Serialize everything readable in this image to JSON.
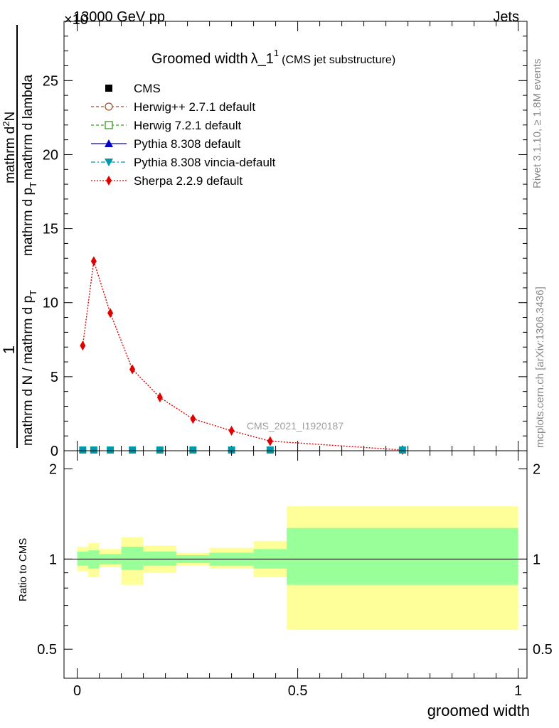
{
  "header": {
    "left": "13000 GeV pp",
    "right": "Jets",
    "exponent": "×10"
  },
  "side_labels": {
    "rivet": "Rivet 3.1.10, ≥ 1.8M events",
    "mcplots": "mcplots.cern.ch [arXiv:1306.3436]"
  },
  "chart_data": {
    "type": "line",
    "title_main": "Groomed width",
    "title_symbol": "λ_1",
    "title_sup": "1",
    "title_note": "(CMS jet substructure)",
    "ylabel_parts": {
      "numer_top": "1",
      "denom_top": "mathrm d N / mathrm d p",
      "denom_top_sub": "T",
      "numer_bot": "mathrm d",
      "numer_bot_sup": "2",
      "numer_bot_end": "N",
      "denom_bot": "mathrm d p",
      "denom_bot_sub": "T",
      "denom_bot_end": "mathrm d lambda"
    },
    "xlabel": "groomed width",
    "ratio_ylabel": "Ratio to CMS",
    "watermark": "CMS_2021_I1920187",
    "x_range": [
      -0.03,
      1.02
    ],
    "main_y_range": [
      0,
      29
    ],
    "main_y_ticks": [
      0,
      5,
      10,
      15,
      20,
      25
    ],
    "ratio_y_range": [
      0.4,
      2.3
    ],
    "ratio_y_ticks": [
      0.5,
      1,
      2
    ],
    "x_ticks": [
      0,
      0.5,
      1
    ],
    "legend": [
      {
        "label": "CMS",
        "color": "#000000",
        "marker": "square-filled",
        "line": "none"
      },
      {
        "label": "Herwig++ 2.7.1 default",
        "color": "#a0522d",
        "marker": "circle-open",
        "line": "dashed"
      },
      {
        "label": "Herwig 7.2.1 default",
        "color": "#3a9a1c",
        "marker": "square-open",
        "line": "dashed"
      },
      {
        "label": "Pythia 8.308 default",
        "color": "#0000cc",
        "marker": "triangle-up",
        "line": "solid"
      },
      {
        "label": "Pythia 8.308 vincia-default",
        "color": "#0099aa",
        "marker": "triangle-down",
        "line": "dashdot"
      },
      {
        "label": "Sherpa 2.2.9 default",
        "color": "#e00000",
        "marker": "diamond",
        "line": "dotted"
      }
    ],
    "bin_edges": [
      0,
      0.025,
      0.05,
      0.1,
      0.15,
      0.225,
      0.3,
      0.4,
      0.475,
      1.0
    ],
    "sherpa": {
      "x": [
        0.0125,
        0.0375,
        0.075,
        0.125,
        0.1875,
        0.2625,
        0.35,
        0.4375,
        0.7375
      ],
      "y": [
        7.1,
        12.8,
        9.3,
        5.5,
        3.6,
        2.15,
        1.35,
        0.65,
        0.05
      ]
    },
    "cms_points_x": [
      0.0125,
      0.0375,
      0.075,
      0.125,
      0.1875,
      0.2625,
      0.35,
      0.4375,
      0.7375
    ],
    "cms_points_y": [
      0.05,
      0.05,
      0.05,
      0.05,
      0.05,
      0.05,
      0.05,
      0.05,
      0.05
    ],
    "ratio_bands": {
      "stat_lo": [
        0.95,
        0.93,
        0.96,
        0.92,
        0.95,
        0.97,
        0.95,
        0.93,
        0.82
      ],
      "stat_hi": [
        1.06,
        1.07,
        1.04,
        1.1,
        1.06,
        1.03,
        1.05,
        1.08,
        1.27
      ],
      "tot_lo": [
        0.91,
        0.87,
        0.94,
        0.82,
        0.9,
        0.95,
        0.93,
        0.87,
        0.58
      ],
      "tot_hi": [
        1.1,
        1.13,
        1.08,
        1.18,
        1.11,
        1.05,
        1.09,
        1.15,
        1.5
      ]
    },
    "colors": {
      "stat_band": "#99ff99",
      "total_band": "#ffff99",
      "sherpa": "#e00000",
      "pythia_vincia": "#0099aa"
    }
  }
}
